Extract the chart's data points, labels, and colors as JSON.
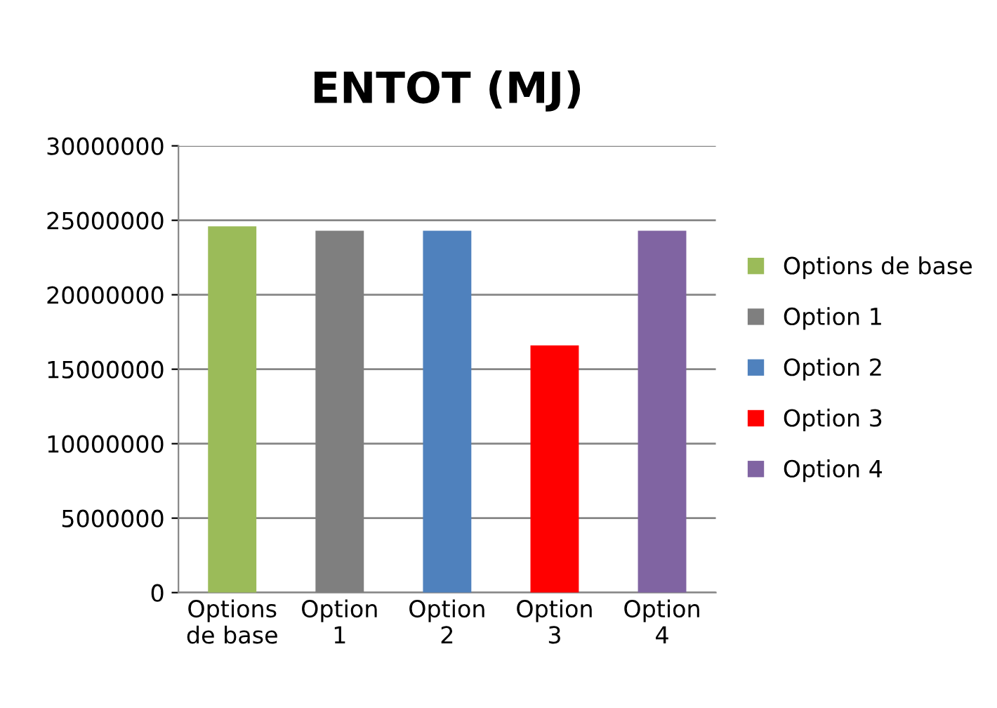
{
  "chart_data": {
    "type": "bar",
    "title": "ENTOT (MJ)",
    "categories": [
      "Options\nde base",
      "Option\n1",
      "Option\n2",
      "Option\n3",
      "Option\n4"
    ],
    "series": [
      {
        "name": "Options de base",
        "color": "#9bbb59",
        "values": [
          24600000,
          null,
          null,
          null,
          null
        ]
      },
      {
        "name": "Option 1",
        "color": "#7f7f7f",
        "values": [
          null,
          24300000,
          null,
          null,
          null
        ]
      },
      {
        "name": "Option 2",
        "color": "#4f81bd",
        "values": [
          null,
          null,
          24300000,
          null,
          null
        ]
      },
      {
        "name": "Option 3",
        "color": "#ff0000",
        "values": [
          null,
          null,
          null,
          16600000,
          null
        ]
      },
      {
        "name": "Option 4",
        "color": "#8064a2",
        "values": [
          null,
          null,
          null,
          null,
          24300000
        ]
      }
    ],
    "ylim": [
      0,
      30000000
    ],
    "yticks": [
      0,
      5000000,
      10000000,
      15000000,
      20000000,
      25000000,
      30000000
    ],
    "grid": "y",
    "legend": "right"
  }
}
